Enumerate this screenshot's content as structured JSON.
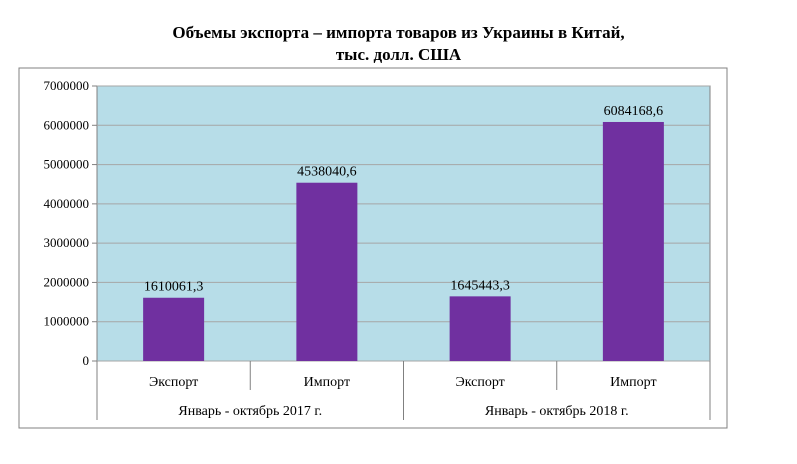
{
  "chart_data": {
    "type": "bar",
    "title_line1": "Объемы экспорта – импорта товаров из Украины в Китай,",
    "title_line2": "тыс. долл. США",
    "groups": [
      "Январь - октябрь 2017 г.",
      "Январь - октябрь 2018 г."
    ],
    "categories": [
      "Экспорт",
      "Импорт",
      "Экспорт",
      "Импорт"
    ],
    "values": [
      1610061.3,
      4538040.6,
      1645443.3,
      6084168.6
    ],
    "data_labels": [
      "1610061,3",
      "4538040,6",
      "1645443,3",
      "6084168,6"
    ],
    "yticks": [
      "0",
      "1000000",
      "2000000",
      "3000000",
      "4000000",
      "5000000",
      "6000000",
      "7000000"
    ],
    "ylim": [
      0,
      7000000
    ],
    "grid": true,
    "colors": {
      "bar": "#7030a0",
      "plot_bg": "#b7dde8",
      "grid": "#a6a6a6",
      "axis": "#808080"
    }
  }
}
